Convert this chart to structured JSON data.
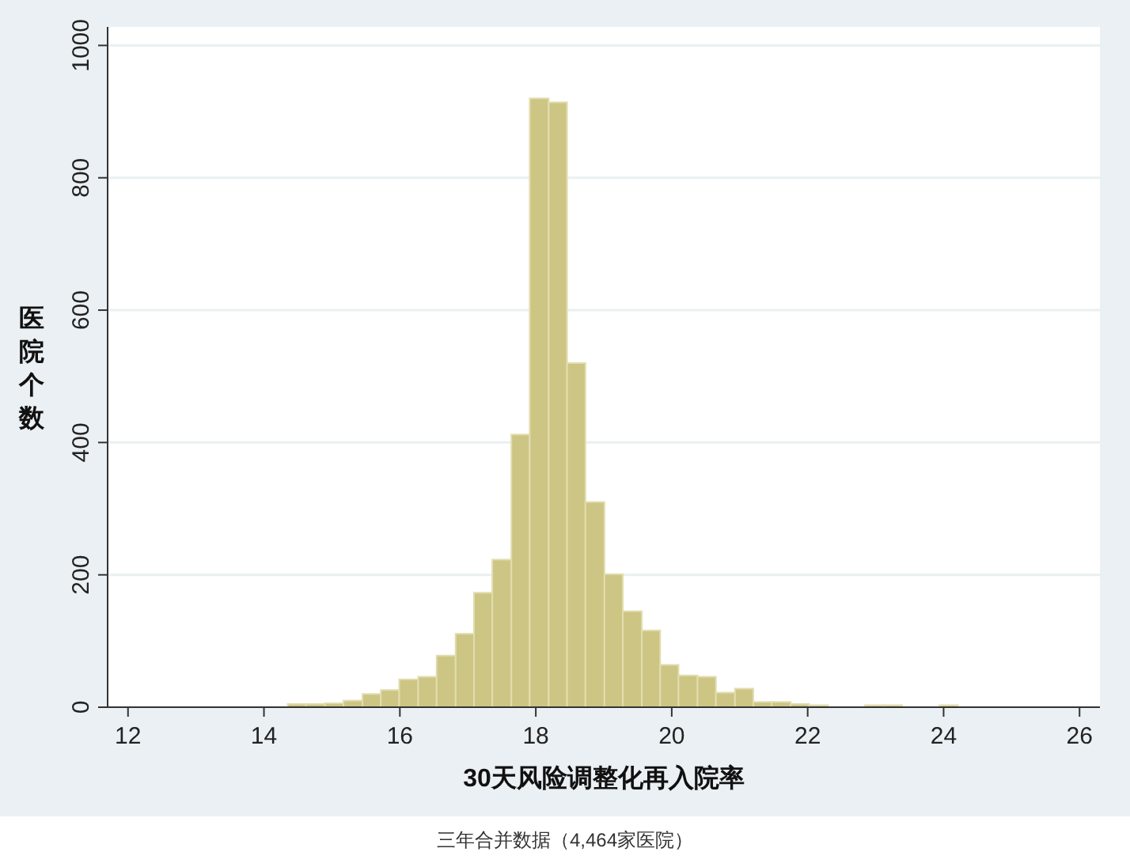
{
  "chart_data": {
    "type": "histogram",
    "xlabel": "30天风险调整化再入院率",
    "ylabel": "医院个数",
    "annotations": [
      "三年合并数据（4,464家医院）"
    ],
    "bins": [
      14.35,
      14.62,
      14.9,
      15.17,
      15.45,
      15.72,
      15.99,
      16.27,
      16.54,
      16.82,
      17.09,
      17.36,
      17.64,
      17.91,
      18.19,
      18.46,
      18.73,
      19.01,
      19.28,
      19.56,
      19.83,
      20.1,
      20.38,
      20.65,
      20.93,
      21.2,
      21.47,
      21.75,
      22.02,
      22.3,
      22.84,
      23.12,
      23.39,
      23.94,
      24.21
    ],
    "values": [
      5,
      5,
      6,
      10,
      20,
      26,
      42,
      46,
      78,
      111,
      173,
      223,
      412,
      920,
      914,
      520,
      310,
      201,
      145,
      116,
      64,
      48,
      46,
      22,
      28,
      8,
      8,
      5,
      3,
      0,
      3,
      3,
      0,
      3
    ],
    "color": "#cdc583",
    "xlim": [
      11.7,
      26.3
    ],
    "xticks": [
      12,
      14,
      16,
      18,
      20,
      22,
      24,
      26
    ],
    "ylim": [
      0,
      1028
    ],
    "yticks": [
      0,
      200,
      400,
      600,
      800,
      1000
    ],
    "grid": "y"
  }
}
